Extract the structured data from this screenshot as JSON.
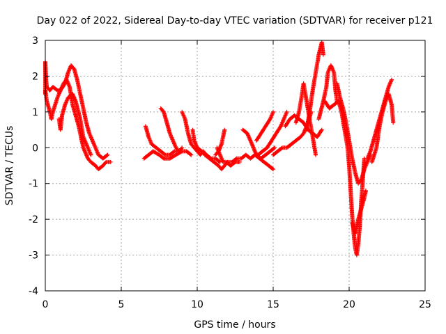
{
  "chart_data": {
    "type": "scatter",
    "title": "Day 022 of 2022, Sidereal Day-to-day VTEC variation (SDTVAR) for receiver p121",
    "xlabel": "GPS time / hours",
    "ylabel": "SDTVAR / TECUs",
    "xlim": [
      0,
      25
    ],
    "ylim": [
      -4,
      3
    ],
    "xticks": [
      "0",
      "5",
      "10",
      "15",
      "20",
      "25"
    ],
    "yticks": [
      "-4",
      "-3",
      "-2",
      "-1",
      "0",
      "1",
      "2",
      "3"
    ],
    "grid": true,
    "marker": "+",
    "series": [
      {
        "name": "SDTVAR",
        "color": "#ff0000",
        "tracks": [
          [
            [
              0.0,
              1.5
            ],
            [
              0.0,
              2.4
            ],
            [
              0.05,
              1.9
            ],
            [
              0.1,
              1.7
            ],
            [
              0.3,
              1.6
            ],
            [
              0.5,
              1.7
            ],
            [
              0.8,
              1.6
            ],
            [
              1.0,
              1.6
            ],
            [
              1.2,
              1.8
            ],
            [
              1.4,
              1.9
            ],
            [
              1.6,
              1.7
            ],
            [
              1.8,
              1.2
            ],
            [
              2.0,
              0.9
            ],
            [
              2.2,
              0.6
            ],
            [
              2.5,
              0.0
            ],
            [
              2.8,
              -0.3
            ],
            [
              3.0,
              -0.4
            ],
            [
              3.3,
              -0.5
            ],
            [
              3.5,
              -0.6
            ],
            [
              3.8,
              -0.5
            ],
            [
              4.0,
              -0.4
            ],
            [
              4.3,
              -0.4
            ]
          ],
          [
            [
              0.0,
              1.6
            ],
            [
              0.1,
              1.3
            ],
            [
              0.3,
              1.0
            ],
            [
              0.4,
              0.8
            ],
            [
              0.5,
              1.0
            ],
            [
              0.8,
              1.4
            ],
            [
              1.0,
              1.6
            ],
            [
              1.3,
              1.8
            ],
            [
              1.5,
              2.1
            ],
            [
              1.7,
              2.3
            ],
            [
              1.9,
              2.2
            ],
            [
              2.1,
              1.9
            ],
            [
              2.3,
              1.5
            ],
            [
              2.5,
              1.1
            ],
            [
              2.7,
              0.7
            ],
            [
              2.9,
              0.4
            ],
            [
              3.1,
              0.2
            ],
            [
              3.3,
              0.0
            ],
            [
              3.5,
              -0.2
            ],
            [
              3.8,
              -0.3
            ],
            [
              4.1,
              -0.2
            ]
          ],
          [
            [
              0.9,
              0.8
            ],
            [
              1.0,
              0.5
            ],
            [
              1.1,
              0.9
            ],
            [
              1.3,
              1.2
            ],
            [
              1.5,
              1.4
            ],
            [
              1.8,
              1.5
            ],
            [
              2.0,
              1.3
            ],
            [
              2.3,
              0.8
            ],
            [
              2.5,
              0.3
            ],
            [
              2.8,
              0.0
            ],
            [
              3.0,
              -0.2
            ]
          ],
          [
            [
              6.6,
              0.6
            ],
            [
              6.8,
              0.3
            ],
            [
              7.0,
              0.1
            ],
            [
              7.3,
              0.0
            ],
            [
              7.6,
              -0.1
            ],
            [
              7.9,
              -0.2
            ],
            [
              8.2,
              -0.2
            ],
            [
              8.5,
              -0.1
            ],
            [
              8.8,
              -0.1
            ],
            [
              9.0,
              0.0
            ]
          ],
          [
            [
              6.5,
              -0.3
            ],
            [
              6.8,
              -0.2
            ],
            [
              7.1,
              -0.1
            ],
            [
              7.5,
              -0.2
            ],
            [
              7.8,
              -0.3
            ],
            [
              8.2,
              -0.3
            ],
            [
              8.6,
              -0.2
            ],
            [
              9.0,
              -0.1
            ],
            [
              9.3,
              -0.1
            ],
            [
              9.6,
              -0.2
            ]
          ],
          [
            [
              7.6,
              1.1
            ],
            [
              7.8,
              1.0
            ],
            [
              8.0,
              0.7
            ],
            [
              8.2,
              0.4
            ],
            [
              8.4,
              0.2
            ],
            [
              8.6,
              0.0
            ],
            [
              8.8,
              -0.1
            ]
          ],
          [
            [
              9.0,
              1.0
            ],
            [
              9.2,
              0.8
            ],
            [
              9.4,
              0.4
            ],
            [
              9.6,
              0.1
            ],
            [
              9.8,
              0.0
            ],
            [
              10.0,
              -0.1
            ],
            [
              10.2,
              -0.2
            ],
            [
              10.4,
              -0.1
            ],
            [
              10.6,
              -0.2
            ]
          ],
          [
            [
              9.7,
              0.5
            ],
            [
              9.8,
              0.2
            ],
            [
              10.0,
              0.0
            ],
            [
              10.3,
              -0.1
            ],
            [
              10.6,
              -0.2
            ],
            [
              10.9,
              -0.3
            ],
            [
              11.2,
              -0.3
            ],
            [
              11.5,
              -0.4
            ]
          ],
          [
            [
              10.5,
              -0.2
            ],
            [
              10.8,
              -0.3
            ],
            [
              11.1,
              -0.4
            ],
            [
              11.4,
              -0.5
            ],
            [
              11.6,
              -0.6
            ],
            [
              11.8,
              -0.5
            ],
            [
              12.0,
              -0.4
            ],
            [
              12.3,
              -0.4
            ],
            [
              12.6,
              -0.3
            ],
            [
              12.9,
              -0.3
            ],
            [
              13.2,
              -0.2
            ],
            [
              13.5,
              -0.3
            ],
            [
              13.8,
              -0.2
            ],
            [
              14.1,
              -0.3
            ],
            [
              14.4,
              -0.4
            ],
            [
              14.7,
              -0.5
            ],
            [
              15.0,
              -0.6
            ]
          ],
          [
            [
              11.8,
              0.5
            ],
            [
              11.7,
              0.3
            ],
            [
              11.6,
              0.1
            ],
            [
              11.5,
              0.0
            ],
            [
              11.4,
              -0.1
            ],
            [
              11.2,
              -0.2
            ]
          ],
          [
            [
              11.3,
              0.0
            ],
            [
              11.5,
              -0.2
            ],
            [
              11.7,
              -0.4
            ],
            [
              11.9,
              -0.4
            ],
            [
              12.2,
              -0.5
            ],
            [
              12.5,
              -0.4
            ],
            [
              12.8,
              -0.4
            ]
          ],
          [
            [
              13.0,
              0.5
            ],
            [
              13.3,
              0.4
            ],
            [
              13.6,
              0.1
            ],
            [
              13.9,
              -0.2
            ],
            [
              14.2,
              -0.3
            ],
            [
              14.5,
              -0.2
            ],
            [
              14.8,
              -0.1
            ],
            [
              15.1,
              0.0
            ]
          ],
          [
            [
              13.9,
              0.2
            ],
            [
              14.2,
              0.4
            ],
            [
              14.5,
              0.6
            ],
            [
              14.8,
              0.8
            ],
            [
              15.0,
              1.0
            ]
          ],
          [
            [
              14.0,
              -0.2
            ],
            [
              14.3,
              -0.1
            ],
            [
              14.6,
              0.0
            ],
            [
              14.9,
              0.2
            ],
            [
              15.2,
              0.4
            ],
            [
              15.5,
              0.6
            ],
            [
              15.7,
              0.8
            ],
            [
              15.9,
              1.0
            ]
          ],
          [
            [
              15.0,
              -0.2
            ],
            [
              15.3,
              -0.1
            ],
            [
              15.6,
              0.0
            ],
            [
              15.9,
              0.0
            ],
            [
              16.2,
              0.1
            ],
            [
              16.5,
              0.2
            ],
            [
              16.8,
              0.3
            ],
            [
              17.0,
              0.4
            ],
            [
              17.3,
              0.7
            ],
            [
              17.5,
              1.0
            ]
          ],
          [
            [
              15.8,
              0.6
            ],
            [
              16.1,
              0.8
            ],
            [
              16.4,
              0.9
            ],
            [
              16.7,
              0.8
            ],
            [
              17.0,
              0.7
            ],
            [
              17.3,
              0.5
            ],
            [
              17.6,
              0.4
            ],
            [
              17.9,
              0.3
            ],
            [
              18.2,
              0.5
            ]
          ],
          [
            [
              16.5,
              0.7
            ],
            [
              16.7,
              1.0
            ],
            [
              16.9,
              1.5
            ],
            [
              17.0,
              1.8
            ],
            [
              17.2,
              1.3
            ],
            [
              17.4,
              0.8
            ],
            [
              17.6,
              0.3
            ],
            [
              17.8,
              -0.2
            ]
          ],
          [
            [
              17.2,
              0.5
            ],
            [
              17.4,
              1.0
            ],
            [
              17.6,
              1.6
            ],
            [
              17.8,
              2.1
            ],
            [
              18.0,
              2.6
            ],
            [
              18.2,
              2.95
            ],
            [
              18.3,
              2.6
            ]
          ],
          [
            [
              18.0,
              0.8
            ],
            [
              18.3,
              1.3
            ],
            [
              18.5,
              1.7
            ],
            [
              18.6,
              2.1
            ],
            [
              18.8,
              2.3
            ],
            [
              19.0,
              2.1
            ],
            [
              19.1,
              1.6
            ],
            [
              19.2,
              1.3
            ]
          ],
          [
            [
              18.4,
              1.3
            ],
            [
              18.7,
              1.1
            ],
            [
              19.0,
              1.2
            ],
            [
              19.3,
              1.3
            ],
            [
              19.5,
              1.0
            ],
            [
              19.7,
              0.5
            ],
            [
              19.9,
              0.0
            ],
            [
              20.0,
              -0.5
            ],
            [
              20.1,
              -1.2
            ],
            [
              20.2,
              -1.9
            ],
            [
              20.3,
              -2.4
            ],
            [
              20.4,
              -2.8
            ],
            [
              20.5,
              -3.0
            ],
            [
              20.6,
              -2.7
            ],
            [
              20.7,
              -2.2
            ],
            [
              20.8,
              -1.5
            ],
            [
              20.9,
              -0.9
            ],
            [
              21.0,
              -0.3
            ]
          ],
          [
            [
              19.2,
              1.8
            ],
            [
              19.4,
              1.4
            ],
            [
              19.6,
              1.1
            ],
            [
              19.8,
              0.7
            ],
            [
              20.0,
              0.2
            ],
            [
              20.2,
              -0.3
            ],
            [
              20.4,
              -0.7
            ],
            [
              20.6,
              -1.0
            ],
            [
              20.8,
              -0.9
            ],
            [
              21.0,
              -0.6
            ],
            [
              21.2,
              -0.4
            ],
            [
              21.4,
              -0.2
            ]
          ],
          [
            [
              20.2,
              -2.1
            ],
            [
              20.4,
              -2.4
            ],
            [
              20.6,
              -2.0
            ],
            [
              20.8,
              -1.7
            ],
            [
              21.0,
              -1.4
            ],
            [
              21.1,
              -1.2
            ]
          ],
          [
            [
              21.2,
              -0.3
            ],
            [
              21.4,
              -0.1
            ],
            [
              21.6,
              0.2
            ],
            [
              21.8,
              0.5
            ],
            [
              22.0,
              0.8
            ],
            [
              22.2,
              1.1
            ],
            [
              22.4,
              1.4
            ],
            [
              22.6,
              1.7
            ],
            [
              22.8,
              1.9
            ]
          ],
          [
            [
              21.5,
              -0.4
            ],
            [
              21.8,
              0.0
            ],
            [
              22.0,
              0.6
            ],
            [
              22.2,
              1.0
            ],
            [
              22.4,
              1.3
            ],
            [
              22.6,
              1.5
            ],
            [
              22.8,
              1.2
            ],
            [
              22.9,
              0.7
            ]
          ]
        ]
      }
    ]
  }
}
